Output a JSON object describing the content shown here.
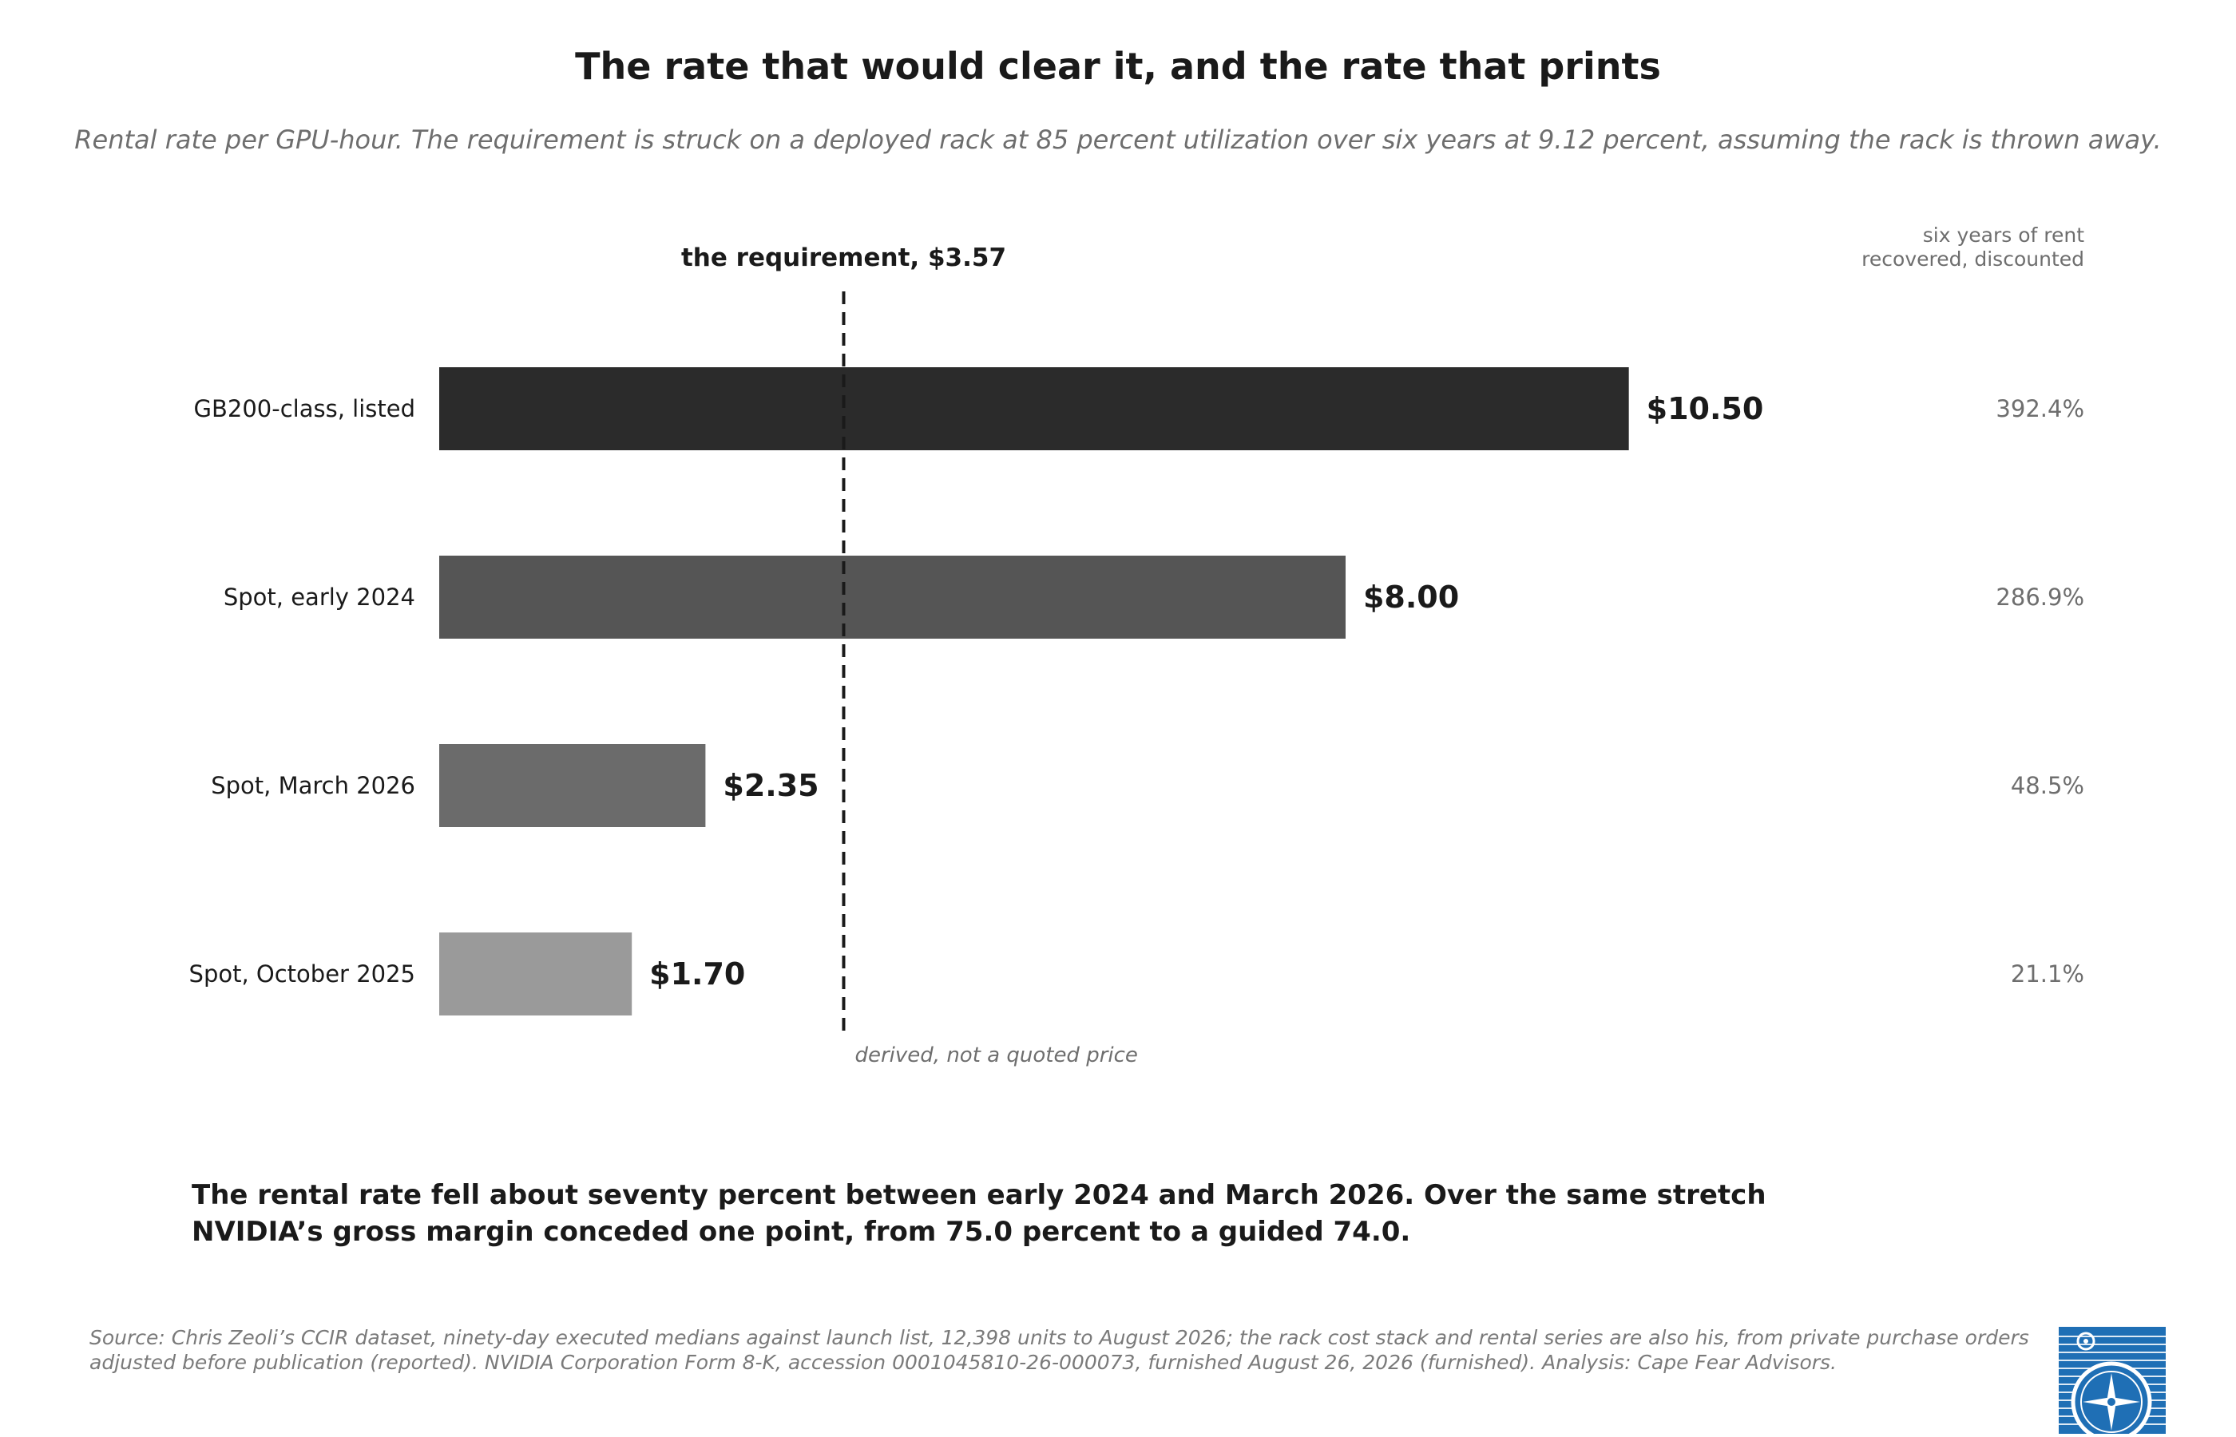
{
  "title": "The rate that would clear it, and the rate that prints",
  "subtitle": "Rental rate per GPU-hour. The requirement is struck on a deployed rack at 85 percent utilization over six years at 9.12 percent, assuming the rack is thrown away.",
  "takeaway": "The rental rate fell about seventy percent between early 2024 and March 2026. Over the same stretch NVIDIA’s gross margin conceded one point, from 75.0 percent to a guided 74.0.",
  "source": "Source: Chris Zeoli’s CCIR dataset, ninety-day executed medians against launch list, 12,398 units to August 2026; the rack cost stack and rental series are also his, from private purchase orders adjusted before publication (reported). NVIDIA Corporation Form 8-K, accession 0001045810-26-000073, furnished August 26, 2026 (furnished). Analysis: Cape Fear Advisors.",
  "logo_icon": "compass-rose-logo-icon",
  "chart_data": {
    "type": "bar",
    "orientation": "horizontal",
    "categories": [
      "GB200-class, listed",
      "Spot, early 2024",
      "Spot, March 2026",
      "Spot, October 2025"
    ],
    "values": [
      10.5,
      8.0,
      2.35,
      1.7
    ],
    "value_labels": [
      "$10.50",
      "$8.00",
      "$2.35",
      "$1.70"
    ],
    "bar_colors": [
      "#2b2b2b",
      "#555555",
      "#6b6b6b",
      "#9a9a9a"
    ],
    "xlim": [
      0,
      14.52
    ],
    "reference_line": {
      "value": 3.57,
      "label": "the requirement, $3.57",
      "note": "derived, not a quoted price"
    },
    "right_column": {
      "header_lines": [
        "six years of rent",
        "recovered, discounted"
      ],
      "values": [
        "392.4%",
        "286.9%",
        "48.5%",
        "21.1%"
      ]
    },
    "grid": false,
    "legend": "none"
  }
}
